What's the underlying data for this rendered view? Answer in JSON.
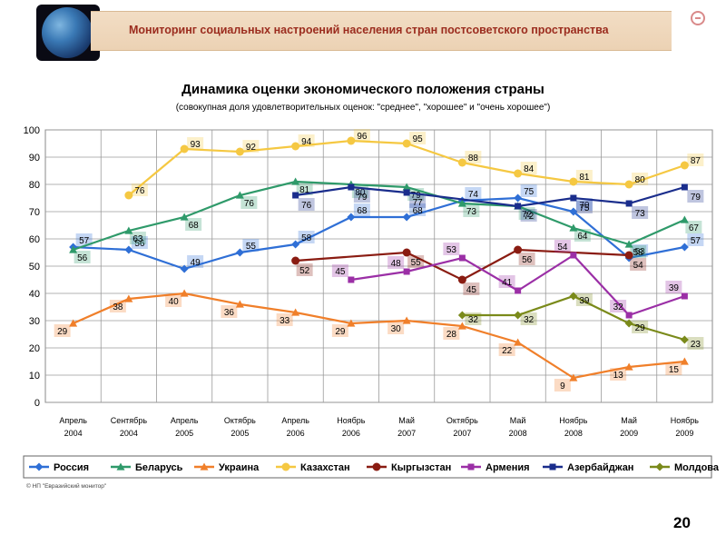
{
  "header": {
    "title": "Мониторинг социальных настроений населения стран постсоветского пространства"
  },
  "icons": [
    "globe-logo",
    "minus-icon"
  ],
  "colors": {
    "banner_text": "#9b2c1e",
    "banner_bg": "#eed7bc"
  },
  "footer": {
    "copyright": "© НП \"Евразийский монитор\""
  },
  "page_number": "20",
  "chart_data": {
    "type": "line",
    "title": "Динамика оценки экономического положения страны",
    "subtitle": "(совокупная доля удовлетворительных оценок: \"среднее\", \"хорошее\" и \"очень хорошее\")",
    "categories": [
      "Апрель 2004",
      "Сентябрь 2004",
      "Апрель 2005",
      "Октябрь 2005",
      "Апрель 2006",
      "Ноябрь 2006",
      "Май 2007",
      "Октябрь 2007",
      "Май 2008",
      "Ноябрь 2008",
      "Май 2009",
      "Ноябрь 2009"
    ],
    "ylim": [
      0,
      100
    ],
    "yticks": [
      0,
      10,
      20,
      30,
      40,
      50,
      60,
      70,
      80,
      90,
      100
    ],
    "grid": true,
    "legend_position": "bottom",
    "series": [
      {
        "name": "Россия",
        "color": "#2f6fd6",
        "marker": "diamond",
        "values": [
          57,
          56,
          49,
          55,
          58,
          68,
          68,
          74,
          75,
          70,
          53,
          57
        ]
      },
      {
        "name": "Беларусь",
        "color": "#2f9a6a",
        "marker": "triangle",
        "values": [
          56,
          63,
          68,
          76,
          81,
          80,
          79,
          73,
          72,
          64,
          58,
          67
        ]
      },
      {
        "name": "Украина",
        "color": "#f07f2a",
        "marker": "triangle",
        "values": [
          29,
          38,
          40,
          36,
          33,
          29,
          30,
          28,
          22,
          9,
          13,
          15
        ]
      },
      {
        "name": "Казахстан",
        "color": "#f5c842",
        "marker": "circle",
        "values": [
          null,
          76,
          93,
          92,
          94,
          96,
          95,
          88,
          84,
          81,
          80,
          87
        ]
      },
      {
        "name": "Кыргызстан",
        "color": "#8a1c12",
        "marker": "circle",
        "values": [
          null,
          null,
          null,
          null,
          52,
          null,
          55,
          45,
          56,
          null,
          54,
          null
        ]
      },
      {
        "name": "Армения",
        "color": "#9b2fa6",
        "marker": "square",
        "values": [
          null,
          null,
          null,
          null,
          null,
          45,
          48,
          53,
          41,
          54,
          32,
          39
        ]
      },
      {
        "name": "Азербайджан",
        "color": "#1a2d8c",
        "marker": "square",
        "values": [
          null,
          null,
          null,
          null,
          76,
          79,
          77,
          null,
          72,
          75,
          73,
          79
        ]
      },
      {
        "name": "Молдова",
        "color": "#7a8a1a",
        "marker": "diamond",
        "values": [
          null,
          null,
          null,
          null,
          null,
          null,
          null,
          32,
          32,
          39,
          29,
          23
        ]
      }
    ]
  }
}
